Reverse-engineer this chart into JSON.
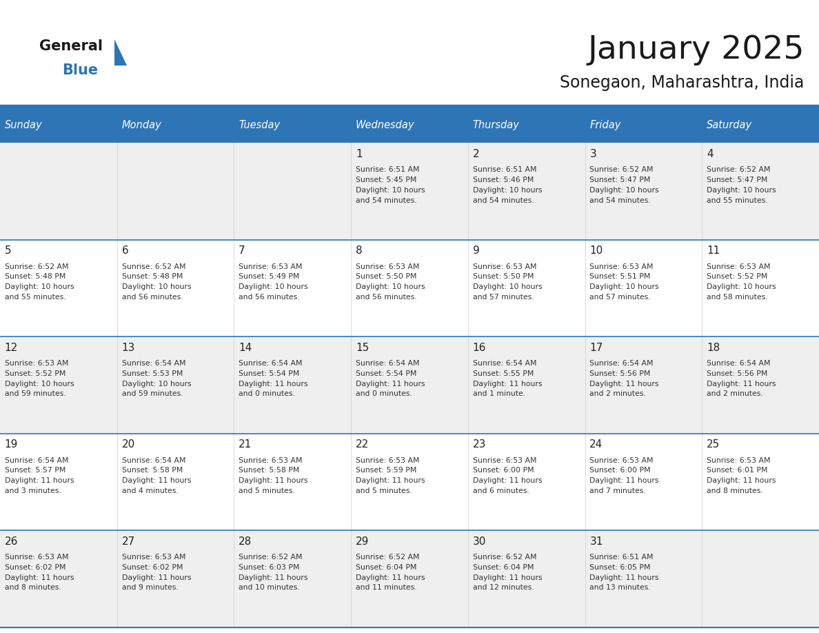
{
  "title": "January 2025",
  "subtitle": "Sonegaon, Maharashtra, India",
  "header_color": "#2E75B6",
  "header_text_color": "#FFFFFF",
  "day_names": [
    "Sunday",
    "Monday",
    "Tuesday",
    "Wednesday",
    "Thursday",
    "Friday",
    "Saturday"
  ],
  "bg_color": "#FFFFFF",
  "cell_bg_light": "#EFEFEF",
  "cell_bg_white": "#FFFFFF",
  "sep_line_color": "#2E75B6",
  "text_color": "#333333",
  "day_num_color": "#222222",
  "logo_general_color": "#1a1a1a",
  "logo_blue_color": "#2E75B6",
  "logo_triangle_color": "#2E75B6",
  "calendar": [
    [
      {
        "day": null,
        "info": null
      },
      {
        "day": null,
        "info": null
      },
      {
        "day": null,
        "info": null
      },
      {
        "day": 1,
        "info": "Sunrise: 6:51 AM\nSunset: 5:45 PM\nDaylight: 10 hours\nand 54 minutes."
      },
      {
        "day": 2,
        "info": "Sunrise: 6:51 AM\nSunset: 5:46 PM\nDaylight: 10 hours\nand 54 minutes."
      },
      {
        "day": 3,
        "info": "Sunrise: 6:52 AM\nSunset: 5:47 PM\nDaylight: 10 hours\nand 54 minutes."
      },
      {
        "day": 4,
        "info": "Sunrise: 6:52 AM\nSunset: 5:47 PM\nDaylight: 10 hours\nand 55 minutes."
      }
    ],
    [
      {
        "day": 5,
        "info": "Sunrise: 6:52 AM\nSunset: 5:48 PM\nDaylight: 10 hours\nand 55 minutes."
      },
      {
        "day": 6,
        "info": "Sunrise: 6:52 AM\nSunset: 5:48 PM\nDaylight: 10 hours\nand 56 minutes."
      },
      {
        "day": 7,
        "info": "Sunrise: 6:53 AM\nSunset: 5:49 PM\nDaylight: 10 hours\nand 56 minutes."
      },
      {
        "day": 8,
        "info": "Sunrise: 6:53 AM\nSunset: 5:50 PM\nDaylight: 10 hours\nand 56 minutes."
      },
      {
        "day": 9,
        "info": "Sunrise: 6:53 AM\nSunset: 5:50 PM\nDaylight: 10 hours\nand 57 minutes."
      },
      {
        "day": 10,
        "info": "Sunrise: 6:53 AM\nSunset: 5:51 PM\nDaylight: 10 hours\nand 57 minutes."
      },
      {
        "day": 11,
        "info": "Sunrise: 6:53 AM\nSunset: 5:52 PM\nDaylight: 10 hours\nand 58 minutes."
      }
    ],
    [
      {
        "day": 12,
        "info": "Sunrise: 6:53 AM\nSunset: 5:52 PM\nDaylight: 10 hours\nand 59 minutes."
      },
      {
        "day": 13,
        "info": "Sunrise: 6:54 AM\nSunset: 5:53 PM\nDaylight: 10 hours\nand 59 minutes."
      },
      {
        "day": 14,
        "info": "Sunrise: 6:54 AM\nSunset: 5:54 PM\nDaylight: 11 hours\nand 0 minutes."
      },
      {
        "day": 15,
        "info": "Sunrise: 6:54 AM\nSunset: 5:54 PM\nDaylight: 11 hours\nand 0 minutes."
      },
      {
        "day": 16,
        "info": "Sunrise: 6:54 AM\nSunset: 5:55 PM\nDaylight: 11 hours\nand 1 minute."
      },
      {
        "day": 17,
        "info": "Sunrise: 6:54 AM\nSunset: 5:56 PM\nDaylight: 11 hours\nand 2 minutes."
      },
      {
        "day": 18,
        "info": "Sunrise: 6:54 AM\nSunset: 5:56 PM\nDaylight: 11 hours\nand 2 minutes."
      }
    ],
    [
      {
        "day": 19,
        "info": "Sunrise: 6:54 AM\nSunset: 5:57 PM\nDaylight: 11 hours\nand 3 minutes."
      },
      {
        "day": 20,
        "info": "Sunrise: 6:54 AM\nSunset: 5:58 PM\nDaylight: 11 hours\nand 4 minutes."
      },
      {
        "day": 21,
        "info": "Sunrise: 6:53 AM\nSunset: 5:58 PM\nDaylight: 11 hours\nand 5 minutes."
      },
      {
        "day": 22,
        "info": "Sunrise: 6:53 AM\nSunset: 5:59 PM\nDaylight: 11 hours\nand 5 minutes."
      },
      {
        "day": 23,
        "info": "Sunrise: 6:53 AM\nSunset: 6:00 PM\nDaylight: 11 hours\nand 6 minutes."
      },
      {
        "day": 24,
        "info": "Sunrise: 6:53 AM\nSunset: 6:00 PM\nDaylight: 11 hours\nand 7 minutes."
      },
      {
        "day": 25,
        "info": "Sunrise: 6:53 AM\nSunset: 6:01 PM\nDaylight: 11 hours\nand 8 minutes."
      }
    ],
    [
      {
        "day": 26,
        "info": "Sunrise: 6:53 AM\nSunset: 6:02 PM\nDaylight: 11 hours\nand 8 minutes."
      },
      {
        "day": 27,
        "info": "Sunrise: 6:53 AM\nSunset: 6:02 PM\nDaylight: 11 hours\nand 9 minutes."
      },
      {
        "day": 28,
        "info": "Sunrise: 6:52 AM\nSunset: 6:03 PM\nDaylight: 11 hours\nand 10 minutes."
      },
      {
        "day": 29,
        "info": "Sunrise: 6:52 AM\nSunset: 6:04 PM\nDaylight: 11 hours\nand 11 minutes."
      },
      {
        "day": 30,
        "info": "Sunrise: 6:52 AM\nSunset: 6:04 PM\nDaylight: 11 hours\nand 12 minutes."
      },
      {
        "day": 31,
        "info": "Sunrise: 6:51 AM\nSunset: 6:05 PM\nDaylight: 11 hours\nand 13 minutes."
      },
      {
        "day": null,
        "info": null
      }
    ]
  ]
}
